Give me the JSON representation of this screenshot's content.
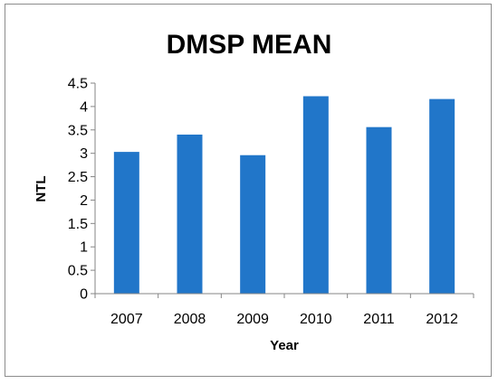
{
  "chart_data": {
    "type": "bar",
    "title": "DMSP MEAN",
    "xlabel": "Year",
    "ylabel": "NTL",
    "categories": [
      "2007",
      "2008",
      "2009",
      "2010",
      "2011",
      "2012"
    ],
    "values": [
      3.03,
      3.4,
      2.96,
      4.22,
      3.56,
      4.16
    ],
    "ylim": [
      0,
      4.5
    ],
    "yticks": [
      "0",
      "0.5",
      "1",
      "1.5",
      "2",
      "2.5",
      "3",
      "3.5",
      "4",
      "4.5"
    ],
    "grid": false,
    "legend": "none",
    "bar_color": "#2176c9",
    "axis_color": "#868686"
  }
}
